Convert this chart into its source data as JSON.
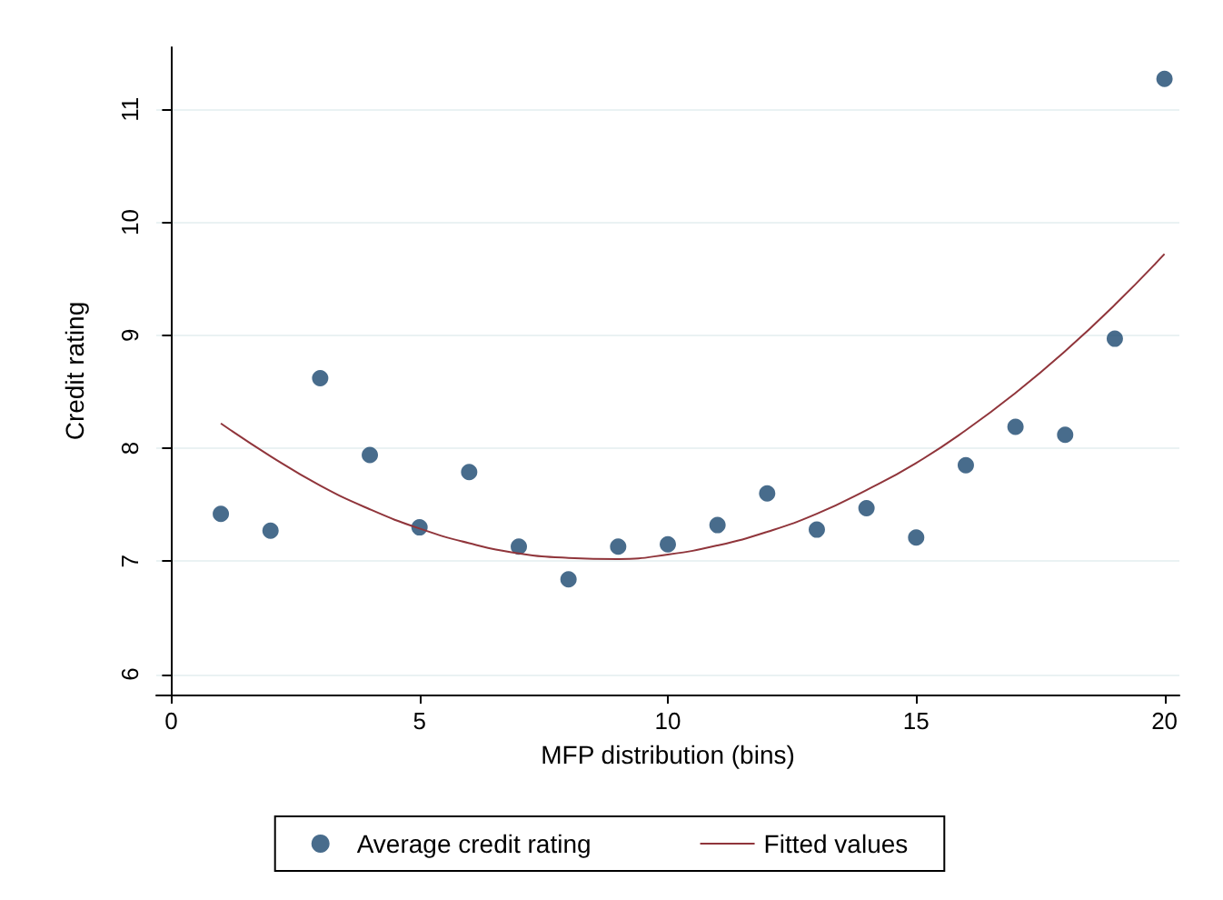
{
  "chart_data": {
    "type": "scatter",
    "xlabel": "MFP distribution (bins)",
    "ylabel": "Credit rating",
    "xlim": [
      -0.3,
      20.3
    ],
    "xticks": [
      0,
      5,
      10,
      15,
      20
    ],
    "ylim": [
      5.82,
      11.55
    ],
    "yticks": [
      6,
      7,
      8,
      9,
      10,
      11
    ],
    "grid": "y",
    "legend": "bottom",
    "series": [
      {
        "name": "Average credit rating",
        "marker": "circle",
        "color": "#1a476f",
        "x": [
          1,
          2,
          3,
          4,
          5,
          6,
          7,
          8,
          9,
          10,
          11,
          12,
          13,
          14,
          15,
          16,
          17,
          18,
          19,
          20
        ],
        "values": [
          7.42,
          7.27,
          8.62,
          7.94,
          7.3,
          7.79,
          7.13,
          6.84,
          7.13,
          7.15,
          7.32,
          7.6,
          7.28,
          7.47,
          7.21,
          7.85,
          8.19,
          8.12,
          8.97,
          11.27
        ]
      },
      {
        "name": "Fitted values",
        "type": "line",
        "color": "#90353b",
        "x": [
          1,
          2,
          3,
          4,
          5,
          6,
          7,
          8,
          9,
          10,
          11,
          12,
          13,
          14,
          15,
          16,
          17,
          18,
          19,
          20
        ],
        "values": [
          8.22,
          7.93,
          7.67,
          7.46,
          7.29,
          7.16,
          7.07,
          7.03,
          7.02,
          7.06,
          7.14,
          7.26,
          7.42,
          7.63,
          7.87,
          8.16,
          8.49,
          8.86,
          9.27,
          9.72
        ]
      }
    ]
  }
}
